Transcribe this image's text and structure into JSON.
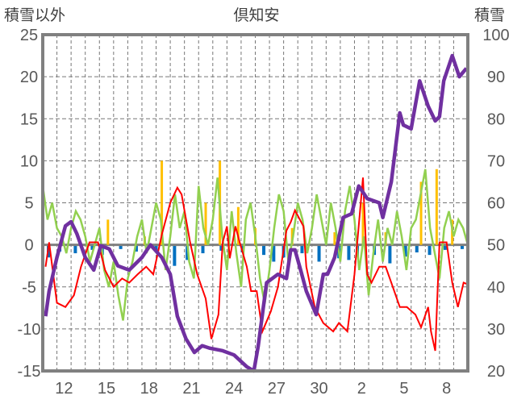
{
  "chart_data": {
    "type": "line",
    "title": "倶知安",
    "ylabel_left": "積雪以外",
    "ylabel_right": "積雪",
    "ylim_left": [
      -15,
      25
    ],
    "ylim_right": [
      20,
      100
    ],
    "yticks_left": [
      "25",
      "20",
      "15",
      "10",
      "5",
      "0",
      "-5",
      "-10",
      "-15"
    ],
    "yticks_right": [
      "100",
      "90",
      "80",
      "70",
      "60",
      "50",
      "40",
      "30",
      "20"
    ],
    "x_range_days": [
      0,
      30
    ],
    "xticks": [
      {
        "d": 1.5,
        "label": "12"
      },
      {
        "d": 4.5,
        "label": "15"
      },
      {
        "d": 7.5,
        "label": "18"
      },
      {
        "d": 10.5,
        "label": "21"
      },
      {
        "d": 13.5,
        "label": "24"
      },
      {
        "d": 16.5,
        "label": "27"
      },
      {
        "d": 19.5,
        "label": "30"
      },
      {
        "d": 22.5,
        "label": "2"
      },
      {
        "d": 25.5,
        "label": "5"
      },
      {
        "d": 28.5,
        "label": "8"
      }
    ],
    "grid": true,
    "colors": {
      "snow": "#7030A0",
      "temp": "#FF0000",
      "green": "#92D050",
      "precip": "#FFC000",
      "blue": "#0070C0",
      "axis": "#808080"
    },
    "series": [
      {
        "name": "snow_depth",
        "axis": "right",
        "points": [
          [
            0.2,
            33
          ],
          [
            0.45,
            39
          ],
          [
            1.0,
            47
          ],
          [
            1.6,
            54.5
          ],
          [
            2.0,
            55.5
          ],
          [
            2.4,
            52.7
          ],
          [
            3.0,
            47
          ],
          [
            3.6,
            44
          ],
          [
            4.1,
            49.8
          ],
          [
            4.7,
            49
          ],
          [
            5.3,
            45
          ],
          [
            6.1,
            44
          ],
          [
            7.0,
            47
          ],
          [
            7.6,
            50
          ],
          [
            8.4,
            47
          ],
          [
            9.0,
            43
          ],
          [
            9.5,
            33
          ],
          [
            10.1,
            27.7
          ],
          [
            10.7,
            24.4
          ],
          [
            11.25,
            26
          ],
          [
            11.8,
            25.4
          ],
          [
            12.7,
            24.8
          ],
          [
            13.5,
            23.8
          ],
          [
            14.4,
            21
          ],
          [
            14.9,
            20
          ],
          [
            15.2,
            25.8
          ],
          [
            15.5,
            33.4
          ],
          [
            15.8,
            41
          ],
          [
            16.6,
            43
          ],
          [
            17.2,
            42
          ],
          [
            17.5,
            48.8
          ],
          [
            17.8,
            48.8
          ],
          [
            18.2,
            44
          ],
          [
            18.6,
            39
          ],
          [
            19.3,
            33.4
          ],
          [
            19.8,
            43
          ],
          [
            20.1,
            43
          ],
          [
            20.6,
            47
          ],
          [
            21.2,
            56.5
          ],
          [
            21.8,
            57.4
          ],
          [
            22.3,
            64
          ],
          [
            22.9,
            61
          ],
          [
            23.75,
            60
          ],
          [
            24.0,
            56.5
          ],
          [
            24.6,
            65
          ],
          [
            25.2,
            81.4
          ],
          [
            25.45,
            78.5
          ],
          [
            26.0,
            77.6
          ],
          [
            26.6,
            89
          ],
          [
            27.2,
            83
          ],
          [
            27.7,
            79.5
          ],
          [
            28.0,
            80.5
          ],
          [
            28.3,
            89
          ],
          [
            28.9,
            95
          ],
          [
            29.4,
            90
          ],
          [
            29.9,
            92
          ]
        ]
      },
      {
        "name": "temperature",
        "axis": "left",
        "points": [
          [
            0.2,
            -2.6
          ],
          [
            0.45,
            0.3
          ],
          [
            1.0,
            -6.9
          ],
          [
            1.6,
            -7.4
          ],
          [
            2.2,
            -6
          ],
          [
            2.7,
            -2.6
          ],
          [
            3.3,
            0.3
          ],
          [
            3.9,
            0.3
          ],
          [
            4.4,
            -3
          ],
          [
            5.0,
            -5
          ],
          [
            5.6,
            -4
          ],
          [
            6.1,
            -4.5
          ],
          [
            6.7,
            -3.5
          ],
          [
            7.3,
            -2.6
          ],
          [
            7.8,
            -3.5
          ],
          [
            8.4,
            1.2
          ],
          [
            9.0,
            5
          ],
          [
            9.5,
            6.8
          ],
          [
            9.8,
            6
          ],
          [
            10.4,
            0.3
          ],
          [
            10.9,
            -3.5
          ],
          [
            11.5,
            -6.4
          ],
          [
            11.9,
            -11.2
          ],
          [
            12.4,
            -8.3
          ],
          [
            12.7,
            0.3
          ],
          [
            13.0,
            2.2
          ],
          [
            13.2,
            -1.6
          ],
          [
            13.6,
            2.2
          ],
          [
            13.9,
            0.3
          ],
          [
            14.4,
            -2.6
          ],
          [
            14.7,
            -5.5
          ],
          [
            15.1,
            -5.5
          ],
          [
            15.5,
            -10.3
          ],
          [
            16.1,
            -7.9
          ],
          [
            16.6,
            -5
          ],
          [
            17.2,
            1.7
          ],
          [
            17.5,
            2.7
          ],
          [
            17.8,
            4.1
          ],
          [
            18.4,
            2.2
          ],
          [
            18.6,
            -2.6
          ],
          [
            19.2,
            -7.4
          ],
          [
            19.8,
            -9.3
          ],
          [
            20.5,
            -10.3
          ],
          [
            20.9,
            -9.3
          ],
          [
            21.5,
            -10.3
          ],
          [
            22.0,
            -3.5
          ],
          [
            22.6,
            8
          ],
          [
            22.9,
            -3.5
          ],
          [
            23.2,
            -4.5
          ],
          [
            23.75,
            -2.6
          ],
          [
            24.2,
            -2.6
          ],
          [
            24.6,
            -4.5
          ],
          [
            25.2,
            -7.4
          ],
          [
            25.7,
            -7.4
          ],
          [
            26.3,
            -8.3
          ],
          [
            26.7,
            -9.8
          ],
          [
            27.2,
            -7.4
          ],
          [
            27.4,
            -10.3
          ],
          [
            27.7,
            -12.6
          ],
          [
            28.0,
            0.3
          ],
          [
            28.5,
            0.3
          ],
          [
            28.9,
            -4.5
          ],
          [
            29.3,
            -7.4
          ],
          [
            29.7,
            -4.5
          ],
          [
            30,
            -4.7
          ]
        ]
      },
      {
        "name": "green",
        "axis": "left",
        "values": [
          7,
          3,
          5,
          2,
          1,
          -1,
          2,
          4,
          3,
          1,
          -2,
          0,
          2,
          -3,
          -5,
          -2,
          -6,
          -9,
          -4,
          -2,
          1,
          3,
          -1,
          2,
          5,
          3,
          -3,
          1,
          6,
          2,
          4,
          -2,
          -4,
          7,
          2,
          0,
          3,
          8,
          1,
          -3,
          4,
          -1,
          -5,
          3,
          5,
          1,
          -4,
          -7,
          -3,
          2,
          6,
          4,
          -2,
          1,
          5,
          3,
          -1,
          2,
          6,
          3,
          0,
          5,
          2,
          -2,
          4,
          7,
          3,
          -3,
          1,
          -6,
          -1,
          3,
          -2,
          2,
          0,
          4,
          1,
          -3,
          2,
          3,
          6,
          9,
          2,
          -1,
          -4,
          2,
          4,
          1,
          3,
          2,
          0
        ]
      },
      {
        "name": "precipitation",
        "axis": "left",
        "bars": [
          [
            4.6,
            3
          ],
          [
            7.2,
            1
          ],
          [
            8.4,
            10
          ],
          [
            11.5,
            5
          ],
          [
            12.5,
            10
          ],
          [
            13.8,
            4.5
          ],
          [
            15.0,
            2
          ],
          [
            17.6,
            2
          ],
          [
            20.6,
            1.5
          ],
          [
            22.6,
            5
          ],
          [
            24.2,
            1.5
          ],
          [
            26.7,
            7.5
          ],
          [
            27.8,
            9
          ],
          [
            28.9,
            3
          ]
        ]
      },
      {
        "name": "blue",
        "axis": "left",
        "bars": [
          [
            0.4,
            -1.5
          ],
          [
            1.2,
            -0.8
          ],
          [
            2.3,
            -1
          ],
          [
            3.5,
            -0.6
          ],
          [
            4.2,
            -1.2
          ],
          [
            5.5,
            -0.5
          ],
          [
            6.6,
            -0.8
          ],
          [
            8.0,
            -0.6
          ],
          [
            9.3,
            -2.5
          ],
          [
            10.2,
            -1.8
          ],
          [
            11.3,
            -1
          ],
          [
            12.6,
            -0.7
          ],
          [
            14.1,
            -0.9
          ],
          [
            15.6,
            -1.2
          ],
          [
            16.3,
            -2
          ],
          [
            17.0,
            -1.5
          ],
          [
            18.3,
            -1
          ],
          [
            19.5,
            -2
          ],
          [
            20.9,
            -1.6
          ],
          [
            21.6,
            -1.8
          ],
          [
            22.2,
            -1.4
          ],
          [
            23.4,
            -1.2
          ],
          [
            24.5,
            -2.2
          ],
          [
            25.6,
            -1.4
          ],
          [
            26.4,
            -0.9
          ],
          [
            27.3,
            -1.2
          ],
          [
            28.4,
            -0.6
          ],
          [
            29.6,
            -0.5
          ]
        ]
      }
    ]
  }
}
